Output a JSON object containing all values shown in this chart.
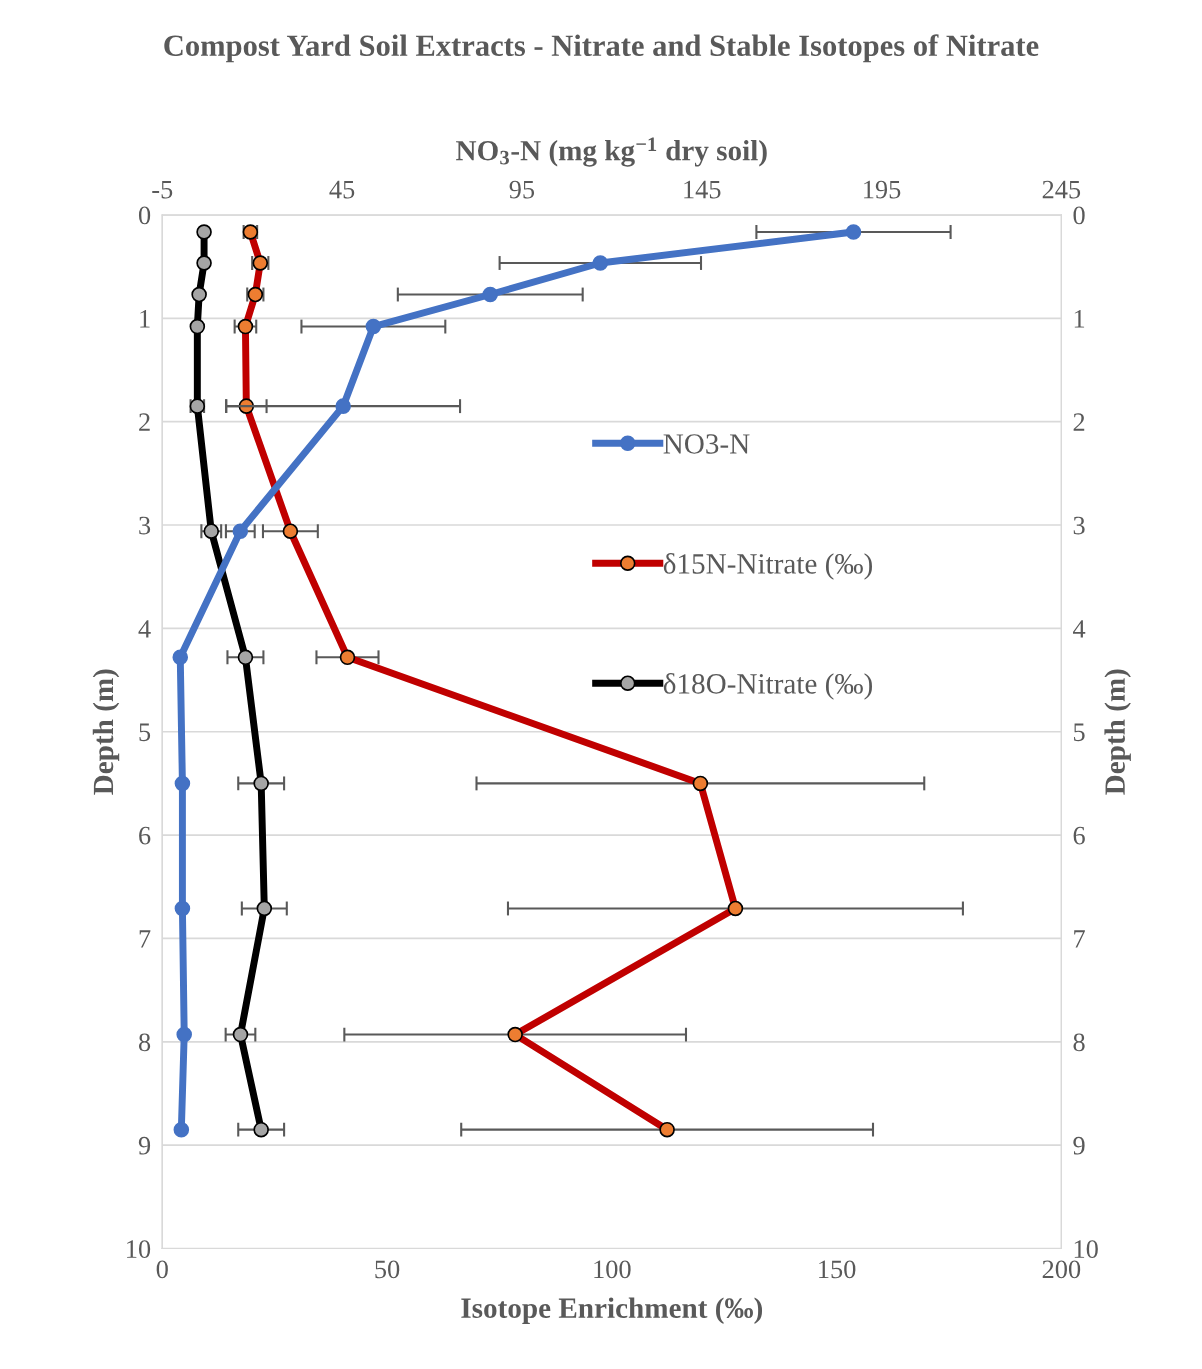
{
  "chart_data": {
    "type": "line",
    "orientation": "horizontal",
    "title": "Compost Yard Soil Extracts - Nitrate and Stable Isotopes of Nitrate",
    "xlabel": "Isotope Enrichment (‰)",
    "x2label": "NO$_{3}$-N (mg kg$^{−1}$ dry soil)",
    "ylabel": "Depth (m)",
    "y2label": "Depth (m)",
    "xlim": [
      0,
      200
    ],
    "xticks": [
      0,
      50,
      100,
      150,
      200
    ],
    "x2lim": [
      -5,
      245
    ],
    "x2ticks": [
      -5,
      45,
      95,
      145,
      195,
      245
    ],
    "ylim": [
      10,
      0
    ],
    "yticks": [
      0,
      1,
      2,
      3,
      4,
      5,
      6,
      7,
      8,
      9,
      10
    ],
    "y2lim": [
      10,
      0
    ],
    "y2ticks": [
      0,
      1,
      2,
      3,
      4,
      5,
      6,
      7,
      8,
      9,
      10
    ],
    "grid": "y",
    "legend": "right",
    "marker": "circle",
    "line_style": "solid",
    "series": [
      {
        "name": "NO3-N",
        "color": "#4472c4",
        "colors": [
          "#4472c4",
          "#4472c4",
          "#4472c4",
          "#4472c4",
          "#4472c4",
          "#4472c4",
          "#4472c4",
          "#4472c4",
          "#4472c4",
          "#4472c4",
          "#4472c4"
        ],
        "axis": "x2",
        "x": [
          0.165,
          0.465,
          0.77,
          1.08,
          1.85,
          3.06,
          4.28,
          5.5,
          6.71,
          7.93,
          8.85
        ],
        "values": [
          187.2,
          116.8,
          86.2,
          53.7,
          45.3,
          16.7,
          0,
          0.6,
          0.6,
          1.1,
          0.3
        ],
        "errors": [
          27,
          28,
          25.7,
          20,
          32.5,
          4,
          null,
          null,
          null,
          null,
          null
        ]
      },
      {
        "name": "δ15N-Nitrate (‰)",
        "color": "#c00000",
        "colors": [
          "#ed7d31",
          "#ed7d31",
          "#ed7d31",
          "#ed7d31",
          "#ed7d31",
          "#ed7d31",
          "#ed7d31",
          "#ed7d31",
          "#ed7d31",
          "#ed7d31",
          "#ed7d31"
        ],
        "x": [
          0.165,
          0.465,
          0.77,
          1.08,
          1.85,
          3.06,
          4.28,
          5.5,
          6.71,
          7.93,
          8.85
        ],
        "values": [
          19.6,
          21.8,
          20.7,
          18.5,
          18.7,
          28.5,
          41.2,
          119.7,
          127.5,
          78.5,
          112.3
        ],
        "errors": [
          1.5,
          1.8,
          1.8,
          2.4,
          4.5,
          6.1,
          6.9,
          49.8,
          50.6,
          38,
          45.8
        ]
      },
      {
        "name": "δ18O-Nitrate (‰)",
        "color": "#000000",
        "colors": [
          "#a5a5a5",
          "#a5a5a5",
          "#a5a5a5",
          "#a5a5a5",
          "#a5a5a5",
          "#a5a5a5",
          "#a5a5a5",
          "#a5a5a5",
          "#a5a5a5",
          "#a5a5a5",
          "#a5a5a5"
        ],
        "x": [
          0.165,
          0.465,
          0.77,
          1.08,
          1.85,
          3.06,
          4.28,
          5.5,
          6.71,
          7.93,
          8.85
        ],
        "values": [
          9.3,
          9.3,
          8.2,
          7.8,
          7.8,
          10.9,
          18.5,
          22.0,
          22.7,
          17.4,
          22.0
        ],
        "errors": [
          null,
          null,
          null,
          null,
          1.5,
          2.2,
          4,
          5.1,
          5,
          3.3,
          5.1
        ]
      }
    ]
  }
}
